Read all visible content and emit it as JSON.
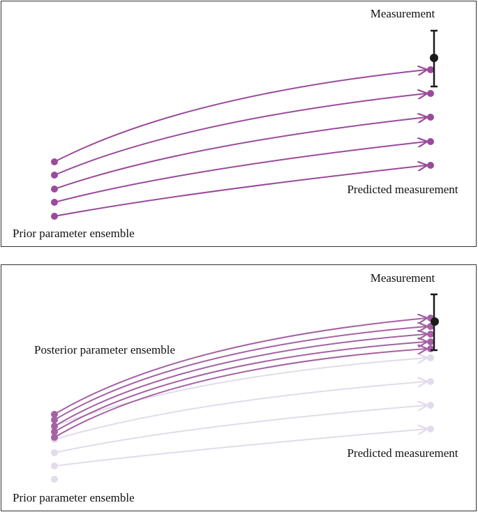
{
  "colors": {
    "prior": "#9b4a9b",
    "prior_faded": "#e2dbeb",
    "posterior": "#a462a4",
    "measurement": "#1a1a1a"
  },
  "panels": [
    {
      "measurement_label": "Measurement",
      "predicted_label": "Predicted measurement",
      "prior_label": "Prior parameter ensemble"
    },
    {
      "measurement_label": "Measurement",
      "posterior_label": "Posterior parameter ensemble",
      "predicted_label": "Predicted measurement",
      "prior_label": "Prior parameter ensemble"
    }
  ]
}
